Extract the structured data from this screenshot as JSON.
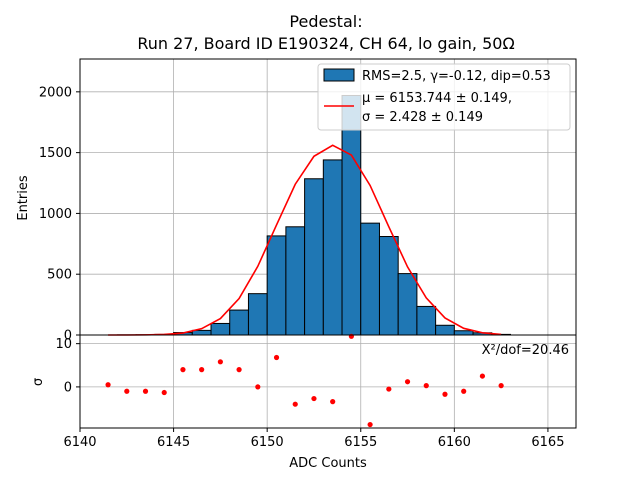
{
  "chart_data": [
    {
      "type": "bar",
      "title": "Pedestal:",
      "subtitle": "Run 27, Board ID E190324, CH 64, lo gain, 50Ω",
      "ylabel": "Entries",
      "xlim": [
        6140,
        6166.5
      ],
      "ylim": [
        0,
        2270
      ],
      "yticks": [
        0,
        500,
        1000,
        1500,
        2000
      ],
      "grid": true,
      "legend_position": "top-right",
      "bar_color": "#1f77b4",
      "fit_color": "#ff0000",
      "bins": [
        {
          "x0": 6141,
          "x1": 6142,
          "value": 0
        },
        {
          "x0": 6142,
          "x1": 6143,
          "value": 1
        },
        {
          "x0": 6143,
          "x1": 6144,
          "value": 2
        },
        {
          "x0": 6144,
          "x1": 6145,
          "value": 5
        },
        {
          "x0": 6145,
          "x1": 6146,
          "value": 20
        },
        {
          "x0": 6146,
          "x1": 6147,
          "value": 38
        },
        {
          "x0": 6147,
          "x1": 6148,
          "value": 95
        },
        {
          "x0": 6148,
          "x1": 6149,
          "value": 205
        },
        {
          "x0": 6149,
          "x1": 6150,
          "value": 340
        },
        {
          "x0": 6150,
          "x1": 6151,
          "value": 815
        },
        {
          "x0": 6151,
          "x1": 6152,
          "value": 890
        },
        {
          "x0": 6152,
          "x1": 6153,
          "value": 1285
        },
        {
          "x0": 6153,
          "x1": 6154,
          "value": 1440
        },
        {
          "x0": 6154,
          "x1": 6155,
          "value": 1970
        },
        {
          "x0": 6155,
          "x1": 6156,
          "value": 920
        },
        {
          "x0": 6156,
          "x1": 6157,
          "value": 810
        },
        {
          "x0": 6157,
          "x1": 6158,
          "value": 505
        },
        {
          "x0": 6158,
          "x1": 6159,
          "value": 235
        },
        {
          "x0": 6159,
          "x1": 6160,
          "value": 80
        },
        {
          "x0": 6160,
          "x1": 6161,
          "value": 35
        },
        {
          "x0": 6161,
          "x1": 6162,
          "value": 18
        },
        {
          "x0": 6162,
          "x1": 6163,
          "value": 5
        }
      ],
      "fit": {
        "x": [
          6141.5,
          6142.5,
          6143.5,
          6144.5,
          6145.5,
          6146.5,
          6147.5,
          6148.5,
          6149.5,
          6150.5,
          6151.5,
          6152.5,
          6153.5,
          6154.5,
          6155.5,
          6156.5,
          6157.5,
          6158.5,
          6159.5,
          6160.5,
          6161.5,
          6162.5
        ],
        "y": [
          0,
          0,
          1,
          5,
          16,
          52,
          135,
          300,
          565,
          905,
          1240,
          1470,
          1560,
          1480,
          1230,
          890,
          560,
          305,
          140,
          55,
          18,
          5
        ]
      },
      "legend": {
        "hist_label": "RMS=2.5, γ=-0.12, dip=0.53",
        "fit_label_line1": "μ = 6153.744 ± 0.149,",
        "fit_label_line2": "σ = 2.428 ± 0.149"
      },
      "ytick_labels": [
        "0",
        "500",
        "1000",
        "1500",
        "2000"
      ]
    },
    {
      "type": "scatter",
      "xlabel": "ADC Counts",
      "ylabel": "σ",
      "xlim": [
        6140,
        6166.5
      ],
      "ylim": [
        -9.5,
        12
      ],
      "yticks": [
        0,
        10
      ],
      "ytick_labels": [
        "0",
        "10"
      ],
      "xticks": [
        6140,
        6145,
        6150,
        6155,
        6160,
        6165
      ],
      "xtick_labels": [
        "6140",
        "6145",
        "6150",
        "6155",
        "6160",
        "6165"
      ],
      "grid": true,
      "point_color": "#ff0000",
      "annotation": "X²/dof=20.46",
      "points": [
        {
          "x": 6141.5,
          "y": 0.5
        },
        {
          "x": 6142.5,
          "y": -1.0
        },
        {
          "x": 6143.5,
          "y": -1.0
        },
        {
          "x": 6144.5,
          "y": -1.3
        },
        {
          "x": 6145.5,
          "y": 4.0
        },
        {
          "x": 6146.5,
          "y": 4.0
        },
        {
          "x": 6147.5,
          "y": 5.8
        },
        {
          "x": 6148.5,
          "y": 4.0
        },
        {
          "x": 6149.5,
          "y": 0.0
        },
        {
          "x": 6150.5,
          "y": 6.8
        },
        {
          "x": 6151.5,
          "y": -4.0
        },
        {
          "x": 6152.5,
          "y": -2.7
        },
        {
          "x": 6153.5,
          "y": -3.4
        },
        {
          "x": 6154.5,
          "y": 11.7
        },
        {
          "x": 6155.5,
          "y": -8.7
        },
        {
          "x": 6156.5,
          "y": -0.5
        },
        {
          "x": 6157.5,
          "y": 1.2
        },
        {
          "x": 6158.5,
          "y": 0.3
        },
        {
          "x": 6159.5,
          "y": -1.7
        },
        {
          "x": 6160.5,
          "y": -1.0
        },
        {
          "x": 6161.5,
          "y": 2.5
        },
        {
          "x": 6162.5,
          "y": 0.3
        }
      ]
    }
  ]
}
